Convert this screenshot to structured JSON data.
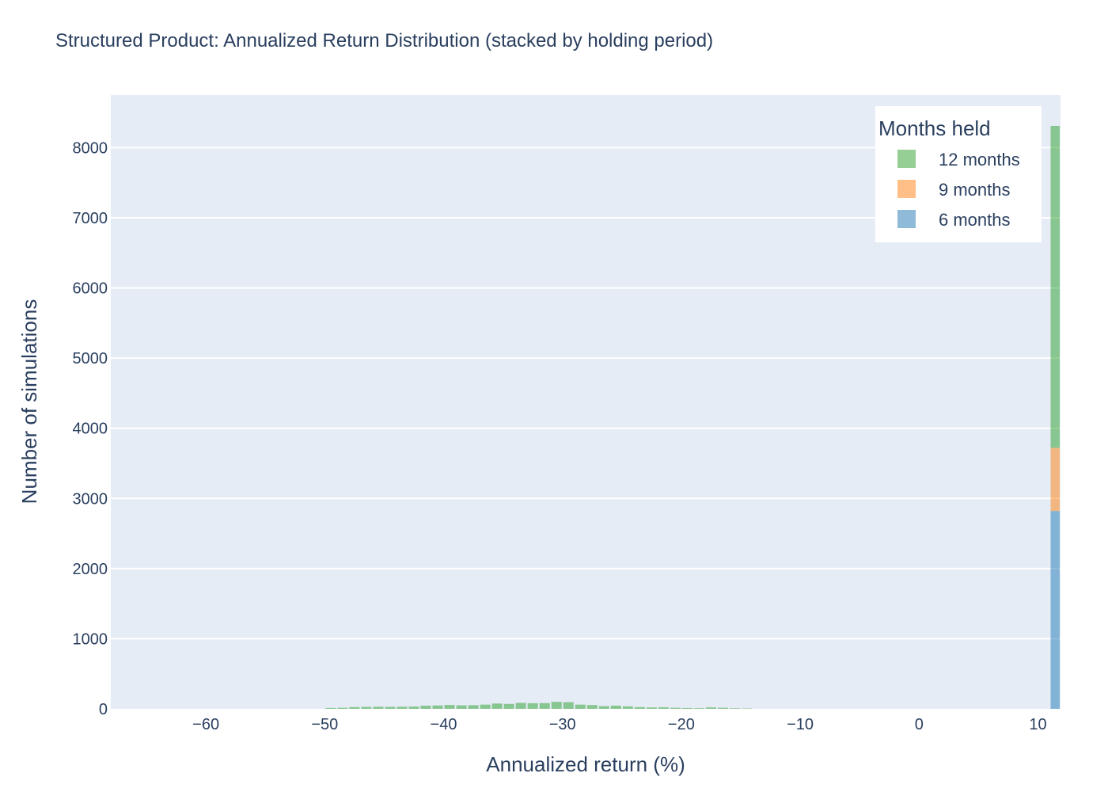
{
  "chart_data": {
    "type": "bar",
    "barmode": "stack",
    "title": "Structured Product: Annualized Return Distribution (stacked by holding period)",
    "xlabel": "Annualized return (%)",
    "ylabel": "Number of simulations",
    "xlim": [
      -68,
      11.9
    ],
    "ylim": [
      0,
      8750
    ],
    "xticks": [
      -60,
      -50,
      -40,
      -30,
      -20,
      -10,
      0,
      10
    ],
    "xtick_labels": [
      "−60",
      "−50",
      "−40",
      "−30",
      "−20",
      "−10",
      "0",
      "10"
    ],
    "yticks": [
      0,
      1000,
      2000,
      3000,
      4000,
      5000,
      6000,
      7000,
      8000
    ],
    "ytick_labels": [
      "0",
      "1000",
      "2000",
      "3000",
      "4000",
      "5000",
      "6000",
      "7000",
      "8000"
    ],
    "grid": true,
    "bin_width": 1,
    "legend": {
      "title": "Months held",
      "placement": "top-right"
    },
    "series": [
      {
        "name": "6 months",
        "color": "#1f77b4",
        "opacity": 0.5,
        "bins": [
          [
            11,
            2820
          ]
        ]
      },
      {
        "name": "9 months",
        "color": "#ff7f0e",
        "opacity": 0.5,
        "bins": [
          [
            11,
            900
          ]
        ]
      },
      {
        "name": "12 months",
        "color": "#2ca02c",
        "opacity": 0.5,
        "bins": [
          [
            -50,
            12
          ],
          [
            -49,
            15
          ],
          [
            -48,
            25
          ],
          [
            -47,
            28
          ],
          [
            -46,
            30
          ],
          [
            -45,
            28
          ],
          [
            -44,
            30
          ],
          [
            -43,
            32
          ],
          [
            -42,
            45
          ],
          [
            -41,
            48
          ],
          [
            -40,
            55
          ],
          [
            -39,
            50
          ],
          [
            -38,
            52
          ],
          [
            -37,
            60
          ],
          [
            -36,
            75
          ],
          [
            -35,
            70
          ],
          [
            -34,
            85
          ],
          [
            -33,
            80
          ],
          [
            -32,
            82
          ],
          [
            -31,
            100
          ],
          [
            -30,
            95
          ],
          [
            -29,
            60
          ],
          [
            -28,
            55
          ],
          [
            -27,
            38
          ],
          [
            -26,
            45
          ],
          [
            -25,
            35
          ],
          [
            -24,
            25
          ],
          [
            -23,
            20
          ],
          [
            -22,
            22
          ],
          [
            -21,
            15
          ],
          [
            -20,
            12
          ],
          [
            -19,
            10
          ],
          [
            -18,
            20
          ],
          [
            -17,
            15
          ],
          [
            -16,
            8
          ],
          [
            -15,
            5
          ],
          [
            11,
            4590
          ]
        ]
      }
    ]
  }
}
